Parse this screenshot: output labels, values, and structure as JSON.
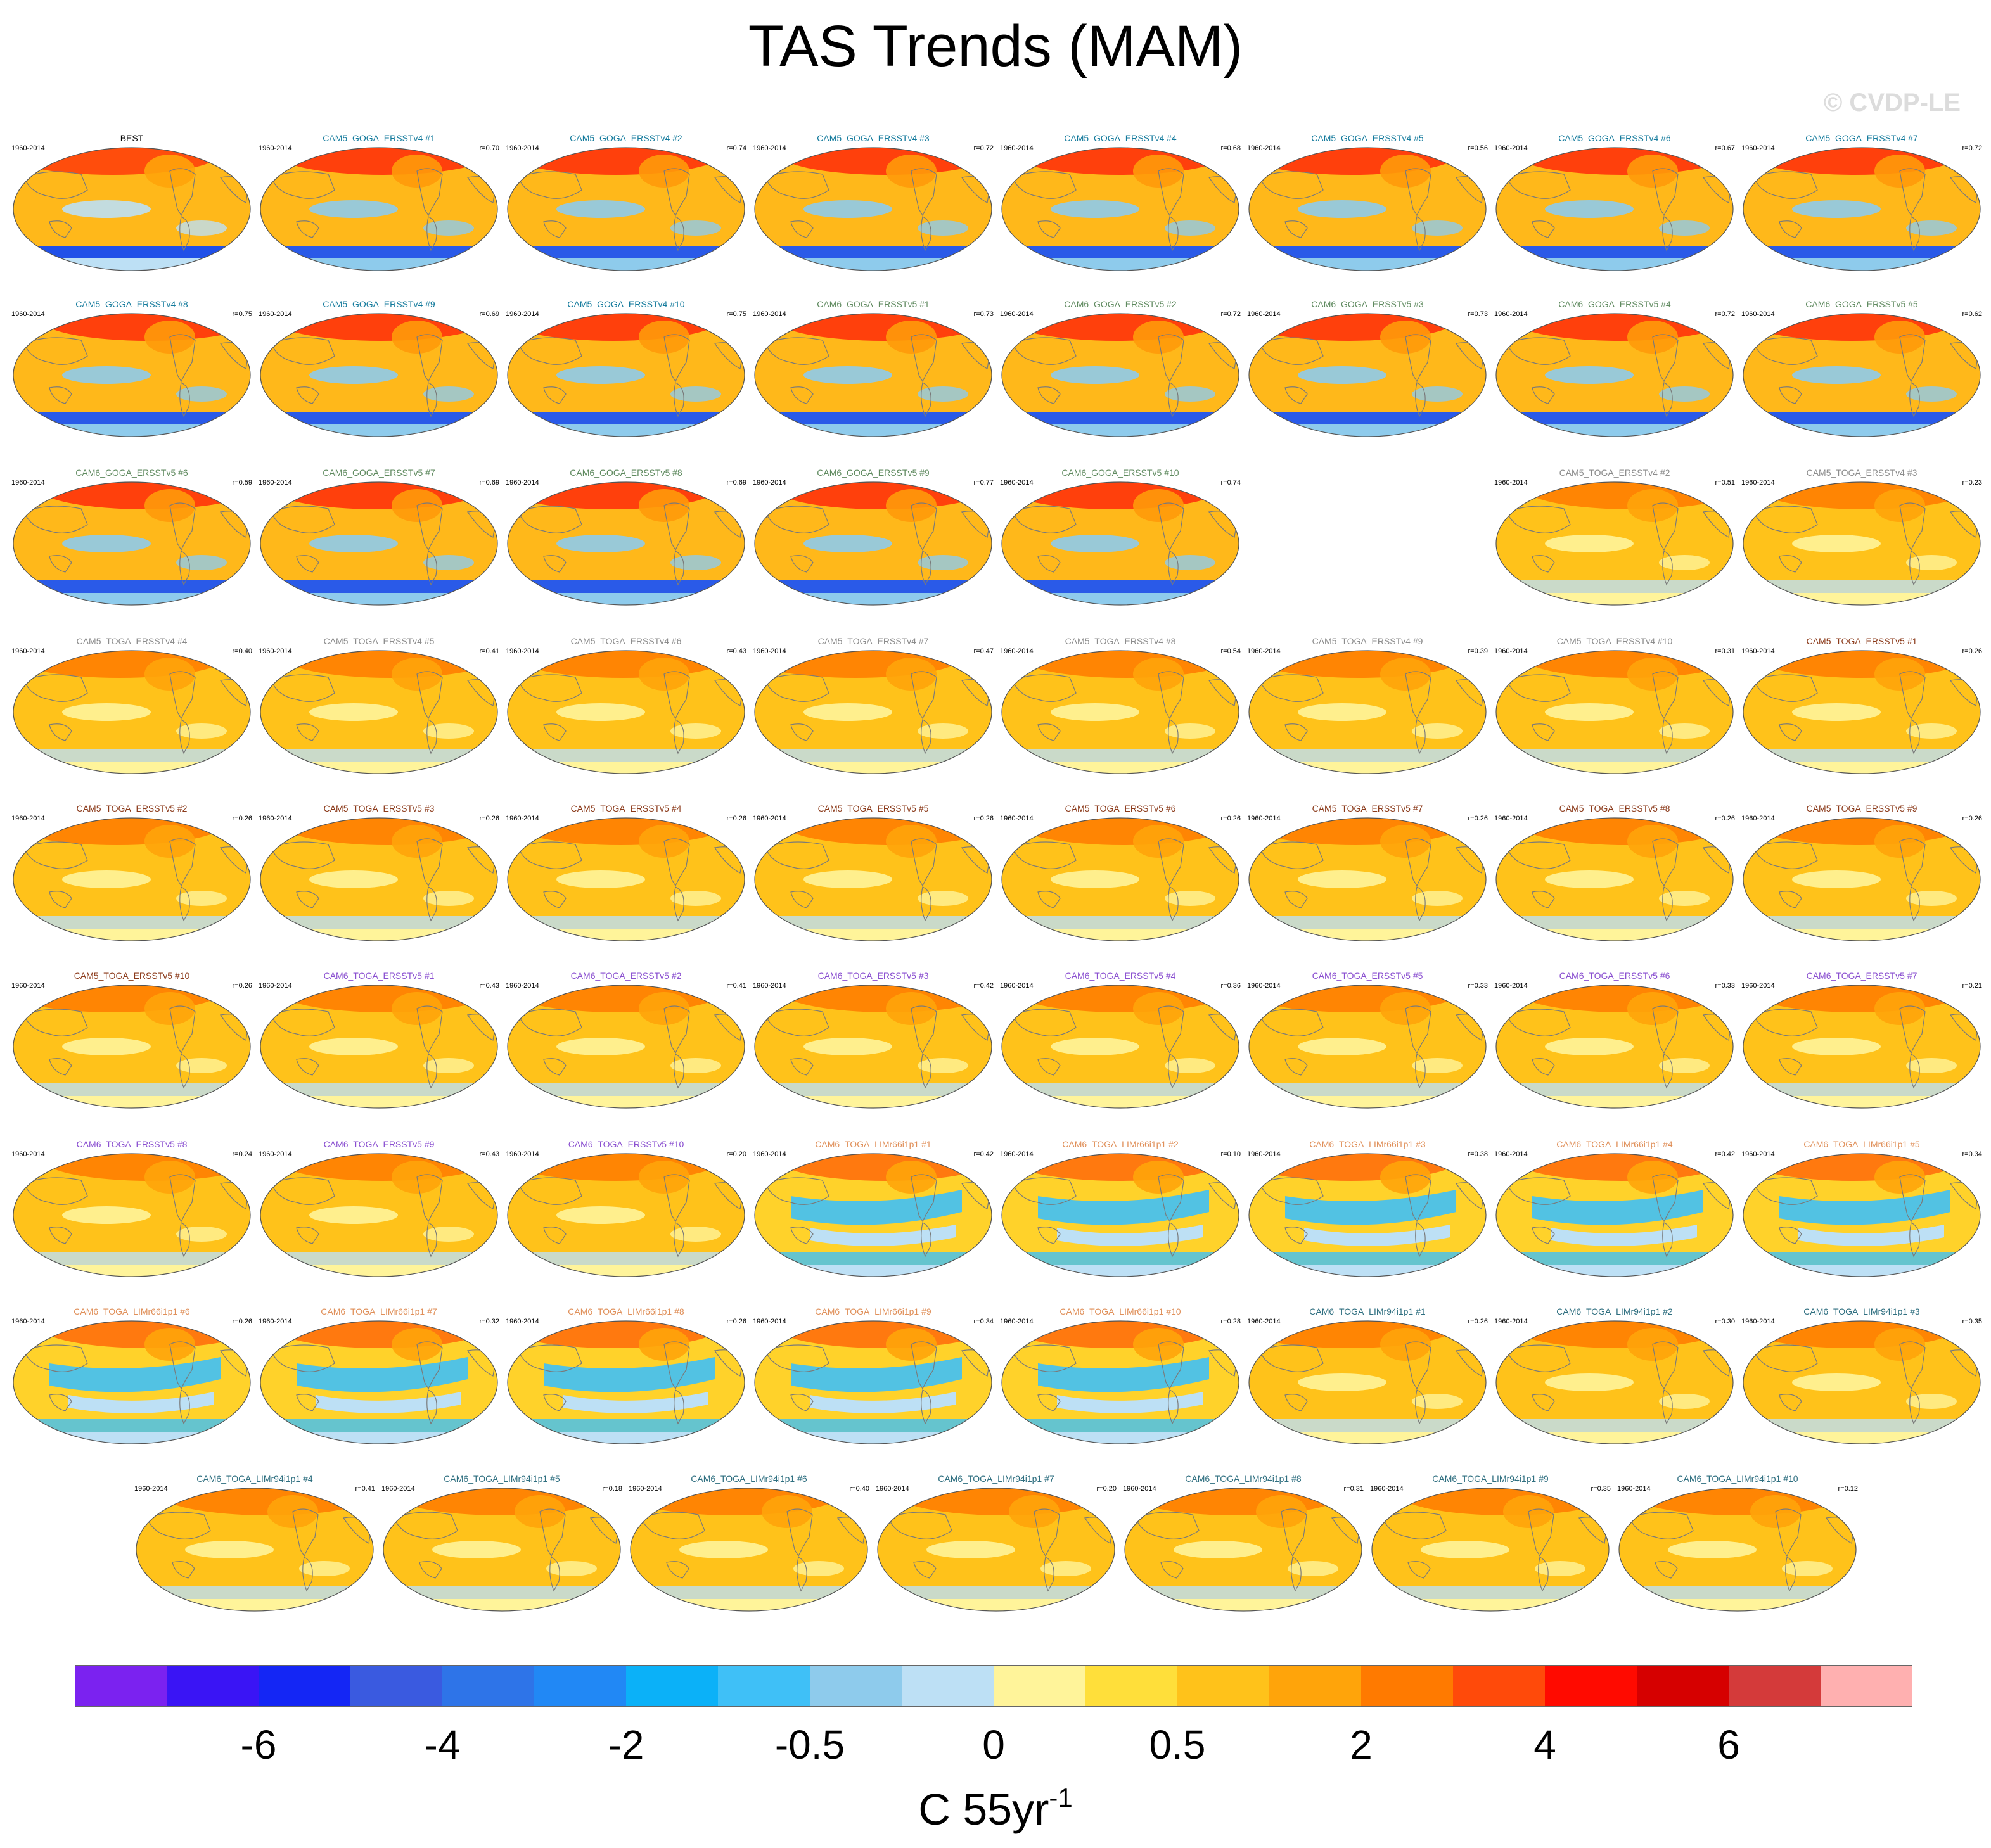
{
  "title": "TAS Trends (MAM)",
  "watermark": "© CVDP-LE",
  "period": "1960-2014",
  "panels": [
    {
      "name": "BEST",
      "r": "",
      "color": "#000000",
      "type": "obs"
    },
    {
      "name": "CAM5_GOGA_ERSSTv4 #1",
      "r": "r=0.70",
      "color": "#137a9c",
      "type": "goga"
    },
    {
      "name": "CAM5_GOGA_ERSSTv4 #2",
      "r": "r=0.74",
      "color": "#137a9c",
      "type": "goga"
    },
    {
      "name": "CAM5_GOGA_ERSSTv4 #3",
      "r": "r=0.72",
      "color": "#137a9c",
      "type": "goga"
    },
    {
      "name": "CAM5_GOGA_ERSSTv4 #4",
      "r": "r=0.68",
      "color": "#137a9c",
      "type": "goga"
    },
    {
      "name": "CAM5_GOGA_ERSSTv4 #5",
      "r": "r=0.56",
      "color": "#137a9c",
      "type": "goga"
    },
    {
      "name": "CAM5_GOGA_ERSSTv4 #6",
      "r": "r=0.67",
      "color": "#137a9c",
      "type": "goga"
    },
    {
      "name": "CAM5_GOGA_ERSSTv4 #7",
      "r": "r=0.72",
      "color": "#137a9c",
      "type": "goga"
    },
    {
      "name": "CAM5_GOGA_ERSSTv4 #8",
      "r": "r=0.75",
      "color": "#137a9c",
      "type": "goga"
    },
    {
      "name": "CAM5_GOGA_ERSSTv4 #9",
      "r": "r=0.69",
      "color": "#137a9c",
      "type": "goga"
    },
    {
      "name": "CAM5_GOGA_ERSSTv4 #10",
      "r": "r=0.75",
      "color": "#137a9c",
      "type": "goga"
    },
    {
      "name": "CAM6_GOGA_ERSSTv5 #1",
      "r": "r=0.73",
      "color": "#5f8a5f",
      "type": "goga"
    },
    {
      "name": "CAM6_GOGA_ERSSTv5 #2",
      "r": "r=0.72",
      "color": "#5f8a5f",
      "type": "goga"
    },
    {
      "name": "CAM6_GOGA_ERSSTv5 #3",
      "r": "r=0.73",
      "color": "#5f8a5f",
      "type": "goga"
    },
    {
      "name": "CAM6_GOGA_ERSSTv5 #4",
      "r": "r=0.72",
      "color": "#5f8a5f",
      "type": "goga"
    },
    {
      "name": "CAM6_GOGA_ERSSTv5 #5",
      "r": "r=0.62",
      "color": "#5f8a5f",
      "type": "goga"
    },
    {
      "name": "CAM6_GOGA_ERSSTv5 #6",
      "r": "r=0.59",
      "color": "#5f8a5f",
      "type": "goga"
    },
    {
      "name": "CAM6_GOGA_ERSSTv5 #7",
      "r": "r=0.69",
      "color": "#5f8a5f",
      "type": "goga"
    },
    {
      "name": "CAM6_GOGA_ERSSTv5 #8",
      "r": "r=0.69",
      "color": "#5f8a5f",
      "type": "goga"
    },
    {
      "name": "CAM6_GOGA_ERSSTv5 #9",
      "r": "r=0.77",
      "color": "#5f8a5f",
      "type": "goga"
    },
    {
      "name": "CAM6_GOGA_ERSSTv5 #10",
      "r": "r=0.74",
      "color": "#5f8a5f",
      "type": "goga"
    },
    {
      "name": "CAM5_TOGA_ERSSTv4 #2",
      "r": "r=0.51",
      "color": "#8c8c8c",
      "type": "toga"
    },
    {
      "name": "CAM5_TOGA_ERSSTv4 #3",
      "r": "r=0.23",
      "color": "#8c8c8c",
      "type": "toga"
    },
    {
      "name": "CAM5_TOGA_ERSSTv4 #4",
      "r": "r=0.40",
      "color": "#8c8c8c",
      "type": "toga"
    },
    {
      "name": "CAM5_TOGA_ERSSTv4 #5",
      "r": "r=0.41",
      "color": "#8c8c8c",
      "type": "toga"
    },
    {
      "name": "CAM5_TOGA_ERSSTv4 #6",
      "r": "r=0.43",
      "color": "#8c8c8c",
      "type": "toga"
    },
    {
      "name": "CAM5_TOGA_ERSSTv4 #7",
      "r": "r=0.47",
      "color": "#8c8c8c",
      "type": "toga"
    },
    {
      "name": "CAM5_TOGA_ERSSTv4 #8",
      "r": "r=0.54",
      "color": "#8c8c8c",
      "type": "toga"
    },
    {
      "name": "CAM5_TOGA_ERSSTv4 #9",
      "r": "r=0.39",
      "color": "#8c8c8c",
      "type": "toga"
    },
    {
      "name": "CAM5_TOGA_ERSSTv4 #10",
      "r": "r=0.31",
      "color": "#8c8c8c",
      "type": "toga"
    },
    {
      "name": "CAM5_TOGA_ERSSTv5 #1",
      "r": "r=0.26",
      "color": "#8b3a1a",
      "type": "toga"
    },
    {
      "name": "CAM5_TOGA_ERSSTv5 #2",
      "r": "r=0.26",
      "color": "#8b3a1a",
      "type": "toga"
    },
    {
      "name": "CAM5_TOGA_ERSSTv5 #3",
      "r": "r=0.26",
      "color": "#8b3a1a",
      "type": "toga"
    },
    {
      "name": "CAM5_TOGA_ERSSTv5 #4",
      "r": "r=0.26",
      "color": "#8b3a1a",
      "type": "toga"
    },
    {
      "name": "CAM5_TOGA_ERSSTv5 #5",
      "r": "r=0.26",
      "color": "#8b3a1a",
      "type": "toga"
    },
    {
      "name": "CAM5_TOGA_ERSSTv5 #6",
      "r": "r=0.26",
      "color": "#8b3a1a",
      "type": "toga"
    },
    {
      "name": "CAM5_TOGA_ERSSTv5 #7",
      "r": "r=0.26",
      "color": "#8b3a1a",
      "type": "toga"
    },
    {
      "name": "CAM5_TOGA_ERSSTv5 #8",
      "r": "r=0.26",
      "color": "#8b3a1a",
      "type": "toga"
    },
    {
      "name": "CAM5_TOGA_ERSSTv5 #9",
      "r": "r=0.26",
      "color": "#8b3a1a",
      "type": "toga"
    },
    {
      "name": "CAM5_TOGA_ERSSTv5 #10",
      "r": "r=0.26",
      "color": "#8b3a1a",
      "type": "toga"
    },
    {
      "name": "CAM6_TOGA_ERSSTv5 #1",
      "r": "r=0.43",
      "color": "#8a4fd0",
      "type": "toga"
    },
    {
      "name": "CAM6_TOGA_ERSSTv5 #2",
      "r": "r=0.41",
      "color": "#8a4fd0",
      "type": "toga"
    },
    {
      "name": "CAM6_TOGA_ERSSTv5 #3",
      "r": "r=0.42",
      "color": "#8a4fd0",
      "type": "toga"
    },
    {
      "name": "CAM6_TOGA_ERSSTv5 #4",
      "r": "r=0.36",
      "color": "#8a4fd0",
      "type": "toga"
    },
    {
      "name": "CAM6_TOGA_ERSSTv5 #5",
      "r": "r=0.33",
      "color": "#8a4fd0",
      "type": "toga"
    },
    {
      "name": "CAM6_TOGA_ERSSTv5 #6",
      "r": "r=0.33",
      "color": "#8a4fd0",
      "type": "toga"
    },
    {
      "name": "CAM6_TOGA_ERSSTv5 #7",
      "r": "r=0.21",
      "color": "#8a4fd0",
      "type": "toga"
    },
    {
      "name": "CAM6_TOGA_ERSSTv5 #8",
      "r": "r=0.24",
      "color": "#8a4fd0",
      "type": "toga"
    },
    {
      "name": "CAM6_TOGA_ERSSTv5 #9",
      "r": "r=0.43",
      "color": "#8a4fd0",
      "type": "toga"
    },
    {
      "name": "CAM6_TOGA_ERSSTv5 #10",
      "r": "r=0.20",
      "color": "#8a4fd0",
      "type": "toga"
    },
    {
      "name": "CAM6_TOGA_LIMr66i1p1 #1",
      "r": "r=0.42",
      "color": "#e0905a",
      "type": "lim"
    },
    {
      "name": "CAM6_TOGA_LIMr66i1p1 #2",
      "r": "r=0.10",
      "color": "#e0905a",
      "type": "lim"
    },
    {
      "name": "CAM6_TOGA_LIMr66i1p1 #3",
      "r": "r=0.38",
      "color": "#e0905a",
      "type": "lim"
    },
    {
      "name": "CAM6_TOGA_LIMr66i1p1 #4",
      "r": "r=0.42",
      "color": "#e0905a",
      "type": "lim"
    },
    {
      "name": "CAM6_TOGA_LIMr66i1p1 #5",
      "r": "r=0.34",
      "color": "#e0905a",
      "type": "lim"
    },
    {
      "name": "CAM6_TOGA_LIMr66i1p1 #6",
      "r": "r=0.26",
      "color": "#e0905a",
      "type": "lim"
    },
    {
      "name": "CAM6_TOGA_LIMr66i1p1 #7",
      "r": "r=0.32",
      "color": "#e0905a",
      "type": "lim"
    },
    {
      "name": "CAM6_TOGA_LIMr66i1p1 #8",
      "r": "r=0.26",
      "color": "#e0905a",
      "type": "lim"
    },
    {
      "name": "CAM6_TOGA_LIMr66i1p1 #9",
      "r": "r=0.34",
      "color": "#e0905a",
      "type": "lim"
    },
    {
      "name": "CAM6_TOGA_LIMr66i1p1 #10",
      "r": "r=0.28",
      "color": "#e0905a",
      "type": "lim"
    },
    {
      "name": "CAM6_TOGA_LIMr94i1p1 #1",
      "r": "r=0.26",
      "color": "#2f6f80",
      "type": "toga"
    },
    {
      "name": "CAM6_TOGA_LIMr94i1p1 #2",
      "r": "r=0.30",
      "color": "#2f6f80",
      "type": "toga"
    },
    {
      "name": "CAM6_TOGA_LIMr94i1p1 #3",
      "r": "r=0.35",
      "color": "#2f6f80",
      "type": "toga"
    },
    {
      "name": "CAM6_TOGA_LIMr94i1p1 #4",
      "r": "r=0.41",
      "color": "#2f6f80",
      "type": "toga"
    },
    {
      "name": "CAM6_TOGA_LIMr94i1p1 #5",
      "r": "r=0.18",
      "color": "#2f6f80",
      "type": "toga"
    },
    {
      "name": "CAM6_TOGA_LIMr94i1p1 #6",
      "r": "r=0.40",
      "color": "#2f6f80",
      "type": "toga"
    },
    {
      "name": "CAM6_TOGA_LIMr94i1p1 #7",
      "r": "r=0.20",
      "color": "#2f6f80",
      "type": "toga"
    },
    {
      "name": "CAM6_TOGA_LIMr94i1p1 #8",
      "r": "r=0.31",
      "color": "#2f6f80",
      "type": "toga"
    },
    {
      "name": "CAM6_TOGA_LIMr94i1p1 #9",
      "r": "r=0.35",
      "color": "#2f6f80",
      "type": "toga"
    },
    {
      "name": "CAM6_TOGA_LIMr94i1p1 #10",
      "r": "r=0.12",
      "color": "#2f6f80",
      "type": "toga"
    }
  ],
  "colorbar": {
    "colors": [
      "#7b22f0",
      "#3a14f5",
      "#1426f5",
      "#3a5ae0",
      "#2e74e8",
      "#2188f5",
      "#0bb1f8",
      "#3fc0f7",
      "#8ecbec",
      "#bde0f5",
      "#fff49a",
      "#ffdf3a",
      "#ffc21a",
      "#ffa40a",
      "#ff7a00",
      "#ff4a0a",
      "#ff0a00",
      "#d60000",
      "#d43a3a",
      "#ffb0b0"
    ],
    "tick_labels": [
      "-6",
      "-4",
      "-2",
      "-0.5",
      "0",
      "0.5",
      "2",
      "4",
      "6"
    ],
    "tick_boundaries": [
      2,
      4,
      6,
      8,
      10,
      12,
      14,
      16,
      18
    ]
  },
  "units": {
    "base": "C 55yr",
    "exp": "-1"
  }
}
